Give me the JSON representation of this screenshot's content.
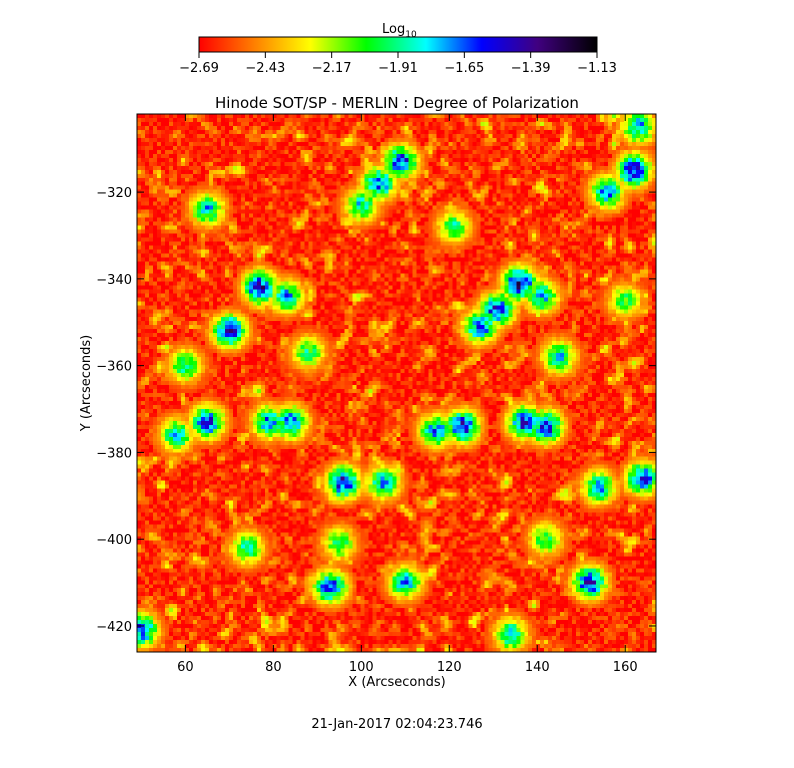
{
  "figure": {
    "title": "Hinode SOT/SP - MERLIN : Degree of Polarization",
    "timestamp": "21-Jan-2017 02:04:23.746"
  },
  "colorbar": {
    "label_base": "Log",
    "label_sub": "10",
    "ticks": [
      "-2.69",
      "-2.43",
      "-2.17",
      "-1.91",
      "-1.65",
      "-1.39",
      "-1.13"
    ],
    "range": [
      -2.69,
      -1.13
    ],
    "colormap": [
      "#ff0000",
      "#ff8000",
      "#ffff00",
      "#00ff00",
      "#00ffff",
      "#0000ff",
      "#400080",
      "#000000"
    ]
  },
  "chart_data": {
    "type": "heatmap",
    "title": "Hinode SOT/SP - MERLIN : Degree of Polarization",
    "xlabel": "X (Arcseconds)",
    "ylabel": "Y (Arcseconds)",
    "xlim": [
      49,
      167
    ],
    "ylim": [
      -426,
      -302
    ],
    "xticks": [
      60,
      80,
      100,
      120,
      140,
      160
    ],
    "yticks": [
      -320,
      -340,
      -360,
      -380,
      -400,
      -420
    ],
    "xtick_labels": [
      "60",
      "80",
      "100",
      "120",
      "140",
      "160"
    ],
    "ytick_labels": [
      "−320",
      "−340",
      "−360",
      "−380",
      "−400",
      "−420"
    ],
    "value_scale": "log10",
    "background_level": -2.62,
    "features": [
      {
        "x": 77,
        "y": -342,
        "peak": -1.45
      },
      {
        "x": 70,
        "y": -352,
        "peak": -1.5
      },
      {
        "x": 83,
        "y": -344,
        "peak": -1.75
      },
      {
        "x": 136,
        "y": -341,
        "peak": -1.4
      },
      {
        "x": 131,
        "y": -347,
        "peak": -1.5
      },
      {
        "x": 127,
        "y": -351,
        "peak": -1.6
      },
      {
        "x": 141,
        "y": -344,
        "peak": -1.75
      },
      {
        "x": 104,
        "y": -318,
        "peak": -1.6
      },
      {
        "x": 109,
        "y": -313,
        "peak": -1.55
      },
      {
        "x": 100,
        "y": -323,
        "peak": -1.85
      },
      {
        "x": 162,
        "y": -315,
        "peak": -1.45
      },
      {
        "x": 156,
        "y": -320,
        "peak": -1.7
      },
      {
        "x": 163,
        "y": -305,
        "peak": -1.75
      },
      {
        "x": 65,
        "y": -373,
        "peak": -1.55
      },
      {
        "x": 58,
        "y": -376,
        "peak": -1.8
      },
      {
        "x": 79,
        "y": -373,
        "peak": -1.7
      },
      {
        "x": 84,
        "y": -373,
        "peak": -1.65
      },
      {
        "x": 123,
        "y": -374,
        "peak": -1.5
      },
      {
        "x": 117,
        "y": -375,
        "peak": -1.7
      },
      {
        "x": 137,
        "y": -373,
        "peak": -1.55
      },
      {
        "x": 142,
        "y": -374,
        "peak": -1.55
      },
      {
        "x": 96,
        "y": -387,
        "peak": -1.5
      },
      {
        "x": 105,
        "y": -387,
        "peak": -1.75
      },
      {
        "x": 93,
        "y": -411,
        "peak": -1.55
      },
      {
        "x": 110,
        "y": -410,
        "peak": -1.75
      },
      {
        "x": 152,
        "y": -410,
        "peak": -1.5
      },
      {
        "x": 134,
        "y": -422,
        "peak": -1.8
      },
      {
        "x": 164,
        "y": -386,
        "peak": -1.6
      },
      {
        "x": 154,
        "y": -388,
        "peak": -1.75
      },
      {
        "x": 65,
        "y": -324,
        "peak": -1.8
      },
      {
        "x": 121,
        "y": -328,
        "peak": -1.95
      },
      {
        "x": 145,
        "y": -358,
        "peak": -1.8
      },
      {
        "x": 60,
        "y": -360,
        "peak": -1.9
      },
      {
        "x": 50,
        "y": -421,
        "peak": -1.6
      },
      {
        "x": 88,
        "y": -357,
        "peak": -1.95
      },
      {
        "x": 95,
        "y": -401,
        "peak": -1.95
      },
      {
        "x": 74,
        "y": -402,
        "peak": -1.9
      },
      {
        "x": 142,
        "y": -400,
        "peak": -1.95
      },
      {
        "x": 160,
        "y": -345,
        "peak": -2.0
      }
    ]
  }
}
